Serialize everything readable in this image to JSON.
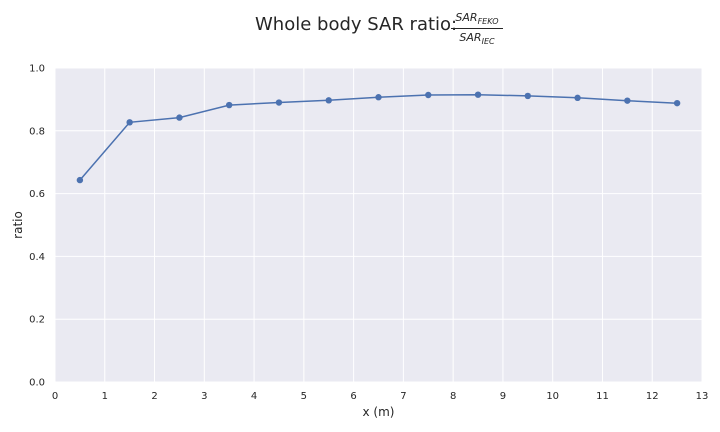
{
  "chart_data": {
    "type": "line",
    "title": {
      "prefix": "Whole body SAR ratio:",
      "numerator_base": "SAR",
      "numerator_sub": "FEKO",
      "denominator_base": "SAR",
      "denominator_sub": "IEC"
    },
    "xlabel": "x (m)",
    "ylabel": "ratio",
    "xlim": [
      0,
      13
    ],
    "ylim": [
      0.0,
      1.0
    ],
    "xticks": [
      0,
      1,
      2,
      3,
      4,
      5,
      6,
      7,
      8,
      9,
      10,
      11,
      12,
      13
    ],
    "yticks": [
      0.0,
      0.2,
      0.4,
      0.6,
      0.8,
      1.0
    ],
    "ytick_labels": [
      "0.0",
      "0.2",
      "0.4",
      "0.6",
      "0.8",
      "1.0"
    ],
    "grid": true,
    "series": [
      {
        "color": "#4c72b0",
        "marker": "circle",
        "x": [
          0.5,
          1.5,
          2.5,
          3.5,
          4.5,
          5.5,
          6.5,
          7.5,
          8.5,
          9.5,
          10.5,
          11.5,
          12.5
        ],
        "y": [
          0.643,
          0.827,
          0.842,
          0.882,
          0.89,
          0.897,
          0.907,
          0.914,
          0.915,
          0.911,
          0.905,
          0.896,
          0.888
        ]
      }
    ],
    "style": {
      "background": "#eaeaf2",
      "grid_color": "#ffffff"
    }
  }
}
